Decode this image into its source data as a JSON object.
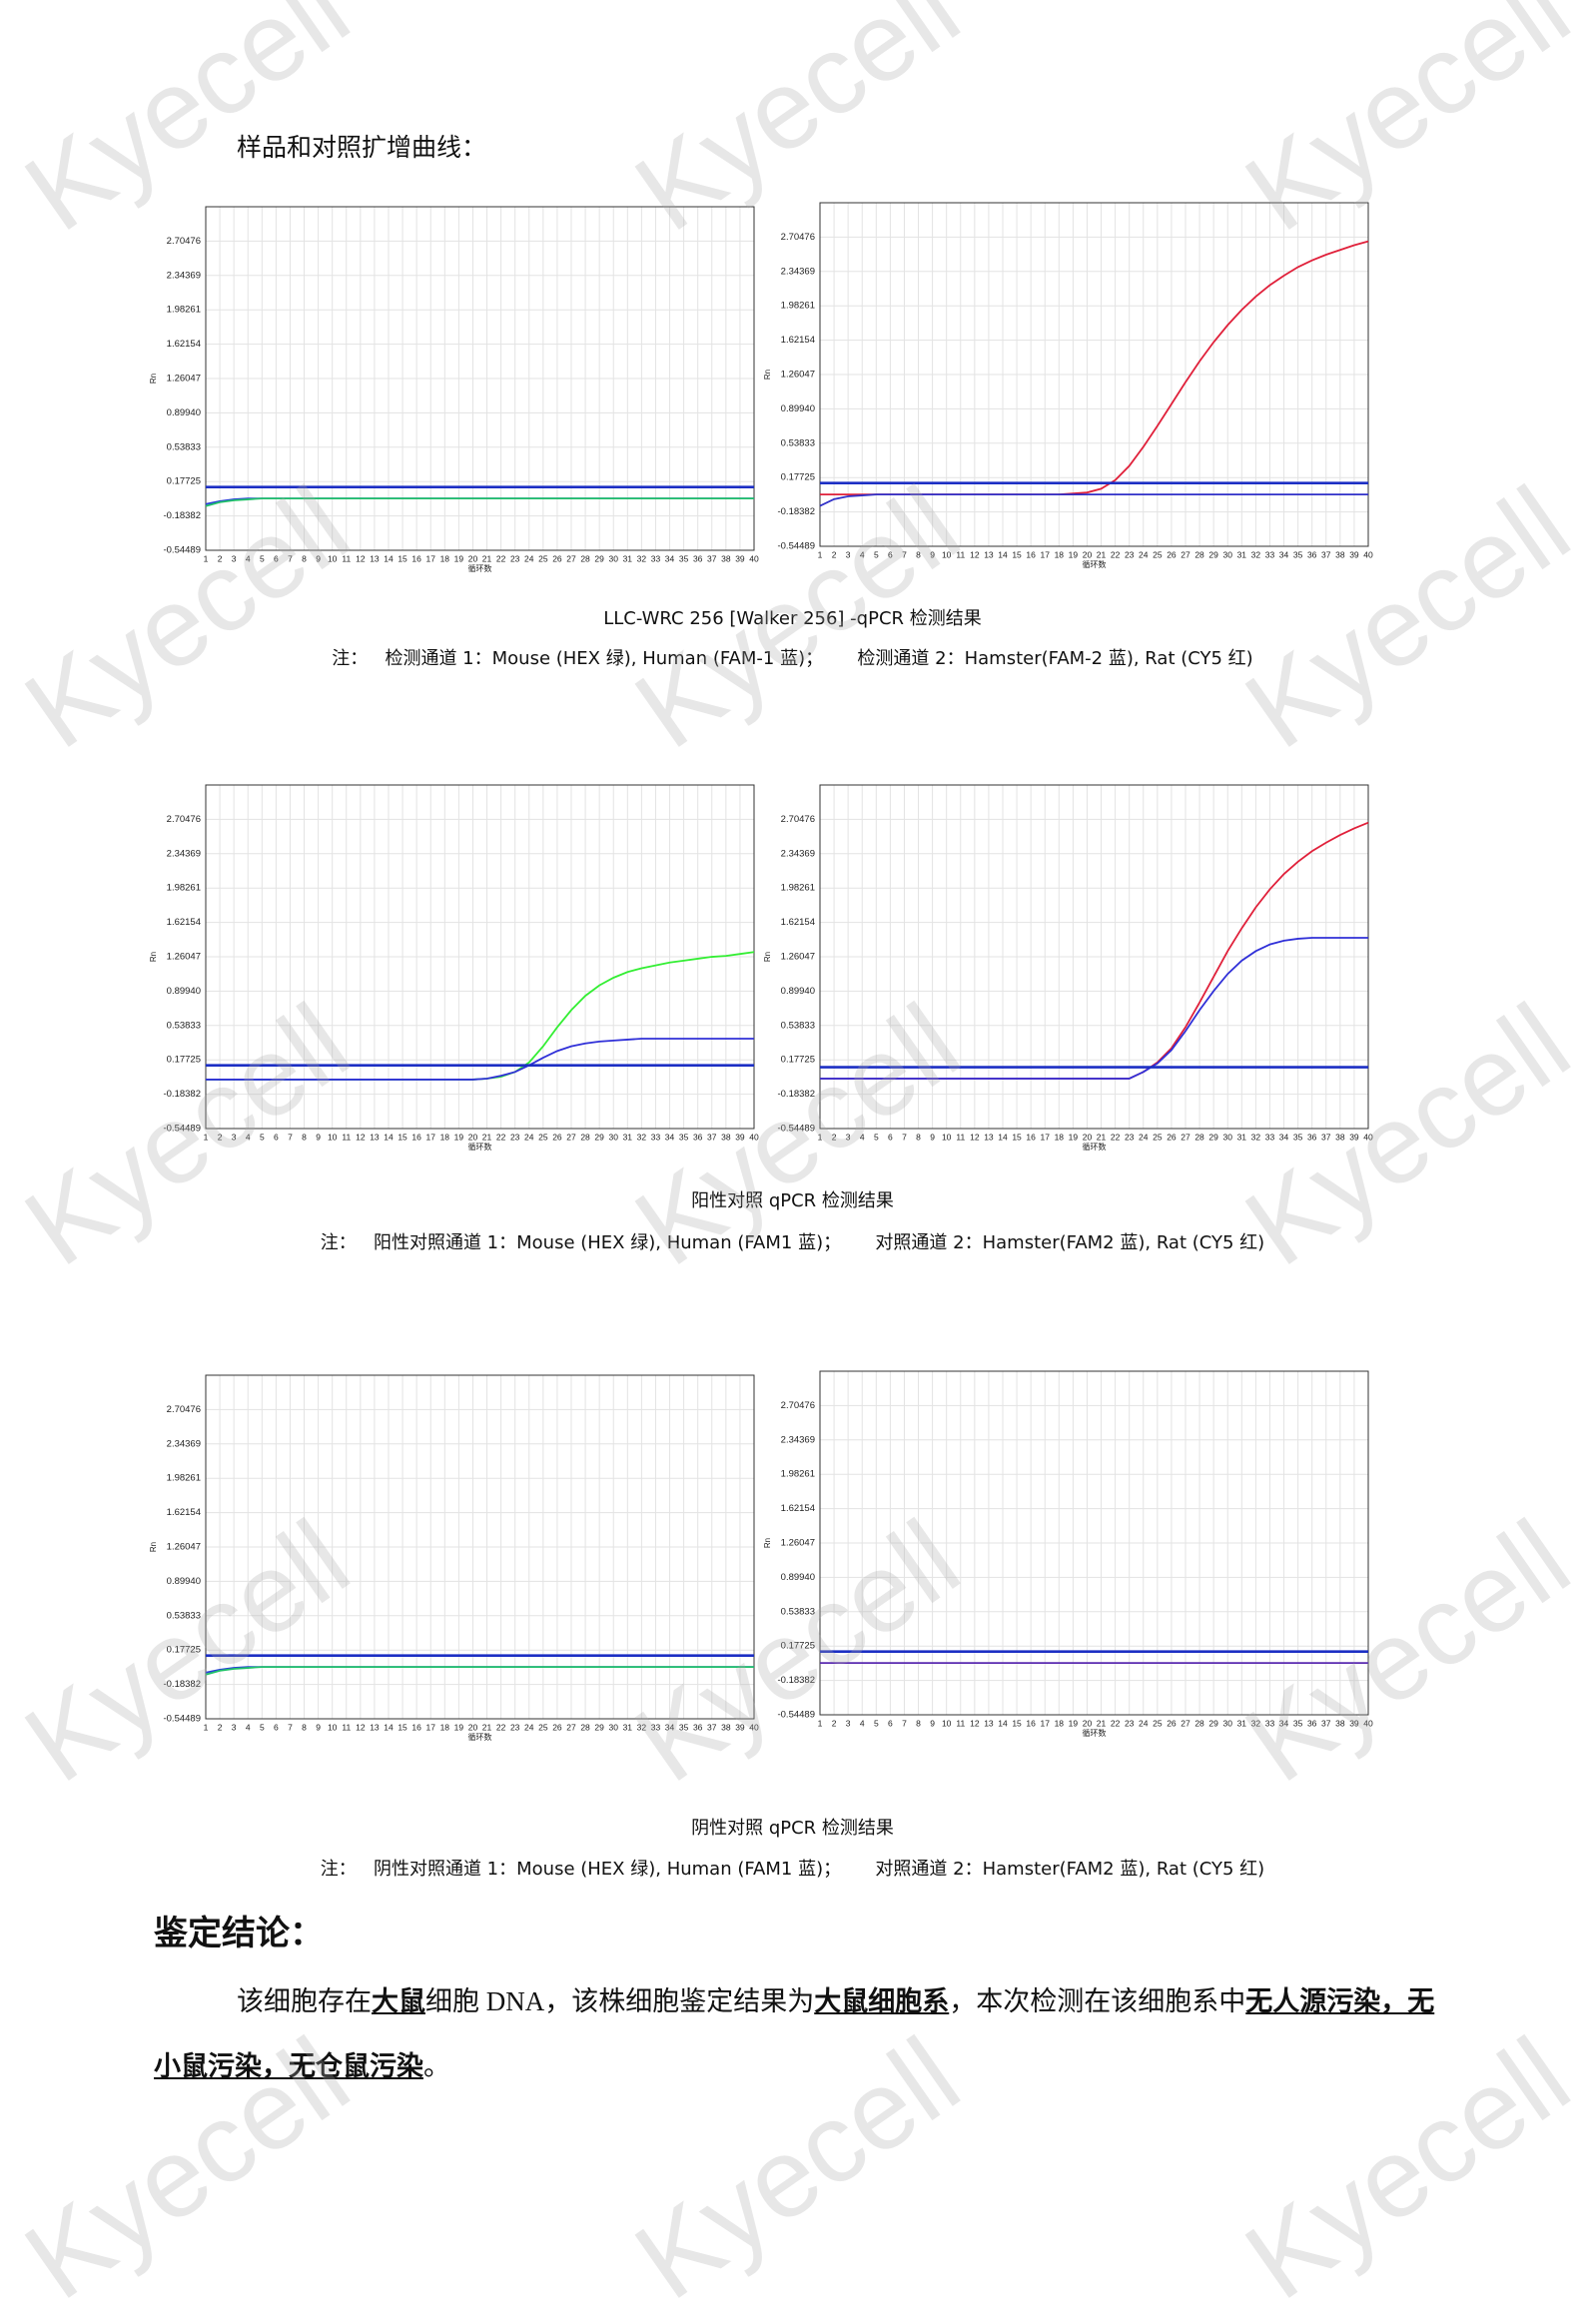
{
  "header": {
    "title": "样品和对照扩增曲线："
  },
  "watermark": "Kyecell",
  "captions": [
    "LLC-WRC 256 [Walker 256] -qPCR 检测结果",
    "阳性对照 qPCR 检测结果",
    "阴性对照 qPCR 检测结果"
  ],
  "notes": [
    "注：   检测通道 1：Mouse (HEX 绿), Human (FAM-1 蓝)；      检测通道 2：Hamster(FAM-2 蓝), Rat (CY5 红)",
    "注：   阳性对照通道 1：Mouse (HEX 绿), Human (FAM1 蓝)；      对照通道 2：Hamster(FAM2 蓝), Rat (CY5 红)",
    "注：   阴性对照通道 1：Mouse (HEX 绿), Human (FAM1 蓝)；      对照通道 2：Hamster(FAM2 蓝), Rat (CY5 红)"
  ],
  "conclusion": {
    "title": "鉴定结论：",
    "segments": [
      {
        "text": "该细胞存在",
        "emphasis": false
      },
      {
        "text": "大鼠",
        "emphasis": true
      },
      {
        "text": "细胞 DNA，该株细胞鉴定结果为",
        "emphasis": false
      },
      {
        "text": "大鼠细胞系",
        "emphasis": true
      },
      {
        "text": "，本次检测在该细胞系中",
        "emphasis": false
      },
      {
        "text": "无人源污染，无小鼠污染，无仓鼠污染",
        "emphasis": true
      },
      {
        "text": "。",
        "emphasis": false
      }
    ]
  },
  "chart_data": [
    {
      "type": "line",
      "x_label": "循环数",
      "y_label": "Rn",
      "grid": true,
      "xlim": [
        1,
        40
      ],
      "ylim": [
        -0.54489,
        3.06583
      ],
      "xticks": [
        1,
        2,
        3,
        4,
        5,
        6,
        7,
        8,
        9,
        10,
        11,
        12,
        13,
        14,
        15,
        16,
        17,
        18,
        19,
        20,
        21,
        22,
        23,
        24,
        25,
        26,
        27,
        28,
        29,
        30,
        31,
        32,
        33,
        34,
        35,
        36,
        37,
        38,
        39,
        40
      ],
      "yticks": [
        -0.54489,
        -0.18382,
        0.17725,
        0.53833,
        {
          "value": 0.8994,
          "label": "0.89940"
        },
        1.26047,
        1.62154,
        1.98261,
        2.34369,
        2.70476
      ],
      "x": [
        1,
        2,
        3,
        4,
        5,
        6,
        7,
        8,
        9,
        10,
        11,
        12,
        13,
        14,
        15,
        16,
        17,
        18,
        19,
        20,
        21,
        22,
        23,
        24,
        25,
        26,
        27,
        28,
        29,
        30,
        31,
        32,
        33,
        34,
        35,
        36,
        37,
        38,
        39,
        40
      ],
      "threshold": {
        "value": 0.12,
        "color": "#1c2fc4"
      },
      "series": [
        {
          "color": "#2a3fd8",
          "values": [
            -0.06,
            -0.03,
            -0.01,
            0,
            0,
            0,
            0,
            0,
            0,
            0,
            0,
            0,
            0,
            0,
            0,
            0,
            0,
            0,
            0,
            0,
            0,
            0,
            0,
            0,
            0,
            0,
            0,
            0,
            0,
            0,
            0,
            0,
            0,
            0,
            0,
            0,
            0,
            0,
            0,
            0
          ]
        },
        {
          "color": "#22c26a",
          "values": [
            -0.08,
            -0.04,
            -0.02,
            -0.01,
            0,
            0,
            0,
            0,
            0,
            0,
            0,
            0,
            0,
            0,
            0,
            0,
            0,
            0,
            0,
            0,
            0,
            0,
            0,
            0,
            0,
            0,
            0,
            0,
            0,
            0,
            0,
            0,
            0,
            0,
            0,
            0,
            0,
            0,
            0,
            0
          ]
        }
      ]
    },
    {
      "type": "line",
      "x_label": "循环数",
      "y_label": "Rn",
      "grid": true,
      "xlim": [
        1,
        40
      ],
      "ylim": [
        -0.54489,
        3.06583
      ],
      "xticks": [
        1,
        2,
        3,
        4,
        5,
        6,
        7,
        8,
        9,
        10,
        11,
        12,
        13,
        14,
        15,
        16,
        17,
        18,
        19,
        20,
        21,
        22,
        23,
        24,
        25,
        26,
        27,
        28,
        29,
        30,
        31,
        32,
        33,
        34,
        35,
        36,
        37,
        38,
        39,
        40
      ],
      "yticks": [
        -0.54489,
        -0.18382,
        0.17725,
        0.53833,
        {
          "value": 0.8994,
          "label": "0.89940"
        },
        1.26047,
        1.62154,
        1.98261,
        2.34369,
        2.70476
      ],
      "x": [
        1,
        2,
        3,
        4,
        5,
        6,
        7,
        8,
        9,
        10,
        11,
        12,
        13,
        14,
        15,
        16,
        17,
        18,
        19,
        20,
        21,
        22,
        23,
        24,
        25,
        26,
        27,
        28,
        29,
        30,
        31,
        32,
        33,
        34,
        35,
        36,
        37,
        38,
        39,
        40
      ],
      "threshold": {
        "value": 0.12,
        "color": "#1c2fc4"
      },
      "series": [
        {
          "color": "#e0203a",
          "values": [
            0,
            0,
            0,
            0,
            0,
            0,
            0,
            0,
            0,
            0,
            0,
            0,
            0,
            0,
            0,
            0,
            0,
            0,
            0.01,
            0.02,
            0.06,
            0.15,
            0.3,
            0.5,
            0.72,
            0.95,
            1.18,
            1.4,
            1.6,
            1.78,
            1.94,
            2.08,
            2.2,
            2.3,
            2.39,
            2.46,
            2.52,
            2.57,
            2.62,
            2.66
          ]
        },
        {
          "color": "#3030c8",
          "values": [
            -0.12,
            -0.05,
            -0.02,
            -0.01,
            0,
            0,
            0,
            0,
            0,
            0,
            0,
            0,
            0,
            0,
            0,
            0,
            0,
            0,
            0,
            0,
            0,
            0,
            0,
            0,
            0,
            0,
            0,
            0,
            0,
            0,
            0,
            0,
            0,
            0,
            0,
            0,
            0,
            0,
            0,
            0
          ]
        }
      ]
    },
    {
      "type": "line",
      "x_label": "循环数",
      "y_label": "Rn",
      "grid": true,
      "xlim": [
        1,
        40
      ],
      "ylim": [
        -0.54489,
        3.06583
      ],
      "xticks": [
        1,
        2,
        3,
        4,
        5,
        6,
        7,
        8,
        9,
        10,
        11,
        12,
        13,
        14,
        15,
        16,
        17,
        18,
        19,
        20,
        21,
        22,
        23,
        24,
        25,
        26,
        27,
        28,
        29,
        30,
        31,
        32,
        33,
        34,
        35,
        36,
        37,
        38,
        39,
        40
      ],
      "yticks": [
        -0.54489,
        -0.18382,
        0.17725,
        0.53833,
        {
          "value": 0.8994,
          "label": "0.89940"
        },
        1.26047,
        1.62154,
        1.98261,
        2.34369,
        2.70476
      ],
      "x": [
        1,
        2,
        3,
        4,
        5,
        6,
        7,
        8,
        9,
        10,
        11,
        12,
        13,
        14,
        15,
        16,
        17,
        18,
        19,
        20,
        21,
        22,
        23,
        24,
        25,
        26,
        27,
        28,
        29,
        30,
        31,
        32,
        33,
        34,
        35,
        36,
        37,
        38,
        39,
        40
      ],
      "threshold": {
        "value": 0.12,
        "color": "#1c2fc4"
      },
      "series": [
        {
          "color": "#33ee33",
          "values": [
            -0.03,
            -0.03,
            -0.03,
            -0.03,
            -0.03,
            -0.03,
            -0.03,
            -0.03,
            -0.03,
            -0.03,
            -0.03,
            -0.03,
            -0.03,
            -0.03,
            -0.03,
            -0.03,
            -0.03,
            -0.03,
            -0.03,
            -0.03,
            -0.02,
            0,
            0.05,
            0.15,
            0.32,
            0.52,
            0.7,
            0.85,
            0.96,
            1.04,
            1.1,
            1.14,
            1.17,
            1.2,
            1.22,
            1.24,
            1.26,
            1.27,
            1.29,
            1.31
          ]
        },
        {
          "color": "#3030d8",
          "values": [
            -0.03,
            -0.03,
            -0.03,
            -0.03,
            -0.03,
            -0.03,
            -0.03,
            -0.03,
            -0.03,
            -0.03,
            -0.03,
            -0.03,
            -0.03,
            -0.03,
            -0.03,
            -0.03,
            -0.03,
            -0.03,
            -0.03,
            -0.03,
            -0.02,
            0.01,
            0.05,
            0.12,
            0.2,
            0.27,
            0.32,
            0.35,
            0.37,
            0.38,
            0.39,
            0.4,
            0.4,
            0.4,
            0.4,
            0.4,
            0.4,
            0.4,
            0.4,
            0.4
          ]
        }
      ]
    },
    {
      "type": "line",
      "x_label": "循环数",
      "y_label": "Rn",
      "grid": true,
      "xlim": [
        1,
        40
      ],
      "ylim": [
        -0.54489,
        3.06583
      ],
      "xticks": [
        1,
        2,
        3,
        4,
        5,
        6,
        7,
        8,
        9,
        10,
        11,
        12,
        13,
        14,
        15,
        16,
        17,
        18,
        19,
        20,
        21,
        22,
        23,
        24,
        25,
        26,
        27,
        28,
        29,
        30,
        31,
        32,
        33,
        34,
        35,
        36,
        37,
        38,
        39,
        40
      ],
      "yticks": [
        -0.54489,
        -0.18382,
        0.17725,
        0.53833,
        {
          "value": 0.8994,
          "label": "0.89940"
        },
        1.26047,
        1.62154,
        1.98261,
        2.34369,
        2.70476
      ],
      "x": [
        1,
        2,
        3,
        4,
        5,
        6,
        7,
        8,
        9,
        10,
        11,
        12,
        13,
        14,
        15,
        16,
        17,
        18,
        19,
        20,
        21,
        22,
        23,
        24,
        25,
        26,
        27,
        28,
        29,
        30,
        31,
        32,
        33,
        34,
        35,
        36,
        37,
        38,
        39,
        40
      ],
      "threshold": {
        "value": 0.1,
        "color": "#1c2fc4"
      },
      "series": [
        {
          "color": "#e0203a",
          "values": [
            -0.02,
            -0.02,
            -0.02,
            -0.02,
            -0.02,
            -0.02,
            -0.02,
            -0.02,
            -0.02,
            -0.02,
            -0.02,
            -0.02,
            -0.02,
            -0.02,
            -0.02,
            -0.02,
            -0.02,
            -0.02,
            -0.02,
            -0.02,
            -0.02,
            -0.02,
            -0.02,
            0.05,
            0.15,
            0.3,
            0.52,
            0.78,
            1.05,
            1.32,
            1.56,
            1.78,
            1.97,
            2.13,
            2.26,
            2.37,
            2.46,
            2.54,
            2.61,
            2.67
          ]
        },
        {
          "color": "#3030d8",
          "values": [
            -0.02,
            -0.02,
            -0.02,
            -0.02,
            -0.02,
            -0.02,
            -0.02,
            -0.02,
            -0.02,
            -0.02,
            -0.02,
            -0.02,
            -0.02,
            -0.02,
            -0.02,
            -0.02,
            -0.02,
            -0.02,
            -0.02,
            -0.02,
            -0.02,
            -0.02,
            -0.02,
            0.05,
            0.14,
            0.28,
            0.48,
            0.7,
            0.9,
            1.08,
            1.22,
            1.32,
            1.39,
            1.43,
            1.45,
            1.46,
            1.46,
            1.46,
            1.46,
            1.46
          ]
        }
      ]
    },
    {
      "type": "line",
      "x_label": "循环数",
      "y_label": "Rn",
      "grid": true,
      "xlim": [
        1,
        40
      ],
      "ylim": [
        -0.54489,
        3.06583
      ],
      "xticks": [
        1,
        2,
        3,
        4,
        5,
        6,
        7,
        8,
        9,
        10,
        11,
        12,
        13,
        14,
        15,
        16,
        17,
        18,
        19,
        20,
        21,
        22,
        23,
        24,
        25,
        26,
        27,
        28,
        29,
        30,
        31,
        32,
        33,
        34,
        35,
        36,
        37,
        38,
        39,
        40
      ],
      "yticks": [
        -0.54489,
        -0.18382,
        0.17725,
        0.53833,
        {
          "value": 0.8994,
          "label": "0.89940"
        },
        1.26047,
        1.62154,
        1.98261,
        2.34369,
        2.70476
      ],
      "x": [
        1,
        2,
        3,
        4,
        5,
        6,
        7,
        8,
        9,
        10,
        11,
        12,
        13,
        14,
        15,
        16,
        17,
        18,
        19,
        20,
        21,
        22,
        23,
        24,
        25,
        26,
        27,
        28,
        29,
        30,
        31,
        32,
        33,
        34,
        35,
        36,
        37,
        38,
        39,
        40
      ],
      "threshold": {
        "value": 0.12,
        "color": "#1c2fc4"
      },
      "series": [
        {
          "color": "#2a3fd8",
          "values": [
            -0.06,
            -0.03,
            -0.01,
            0,
            0,
            0,
            0,
            0,
            0,
            0,
            0,
            0,
            0,
            0,
            0,
            0,
            0,
            0,
            0,
            0,
            0,
            0,
            0,
            0,
            0,
            0,
            0,
            0,
            0,
            0,
            0,
            0,
            0,
            0,
            0,
            0,
            0,
            0,
            0,
            0
          ]
        },
        {
          "color": "#22c26a",
          "values": [
            -0.08,
            -0.04,
            -0.02,
            -0.01,
            0,
            0,
            0,
            0,
            0,
            0,
            0,
            0,
            0,
            0,
            0,
            0,
            0,
            0,
            0,
            0,
            0,
            0,
            0,
            0,
            0,
            0,
            0,
            0,
            0,
            0,
            0,
            0,
            0,
            0,
            0,
            0,
            0,
            0,
            0,
            0
          ]
        }
      ]
    },
    {
      "type": "line",
      "x_label": "循环数",
      "y_label": "Rn",
      "grid": true,
      "xlim": [
        1,
        40
      ],
      "ylim": [
        -0.54489,
        3.06583
      ],
      "xticks": [
        1,
        2,
        3,
        4,
        5,
        6,
        7,
        8,
        9,
        10,
        11,
        12,
        13,
        14,
        15,
        16,
        17,
        18,
        19,
        20,
        21,
        22,
        23,
        24,
        25,
        26,
        27,
        28,
        29,
        30,
        31,
        32,
        33,
        34,
        35,
        36,
        37,
        38,
        39,
        40
      ],
      "yticks": [
        -0.54489,
        -0.18382,
        0.17725,
        0.53833,
        {
          "value": 0.8994,
          "label": "0.89940"
        },
        1.26047,
        1.62154,
        1.98261,
        2.34369,
        2.70476
      ],
      "x": [
        1,
        2,
        3,
        4,
        5,
        6,
        7,
        8,
        9,
        10,
        11,
        12,
        13,
        14,
        15,
        16,
        17,
        18,
        19,
        20,
        21,
        22,
        23,
        24,
        25,
        26,
        27,
        28,
        29,
        30,
        31,
        32,
        33,
        34,
        35,
        36,
        37,
        38,
        39,
        40
      ],
      "threshold": {
        "value": 0.12,
        "color": "#1c2fc4"
      },
      "series": [
        {
          "color": "#5a2bb0",
          "values": [
            0,
            0,
            0,
            0,
            0,
            0,
            0,
            0,
            0,
            0,
            0,
            0,
            0,
            0,
            0,
            0,
            0,
            0,
            0,
            0,
            0,
            0,
            0,
            0,
            0,
            0,
            0,
            0,
            0,
            0,
            0,
            0,
            0,
            0,
            0,
            0,
            0,
            0,
            0,
            0
          ]
        }
      ]
    }
  ]
}
